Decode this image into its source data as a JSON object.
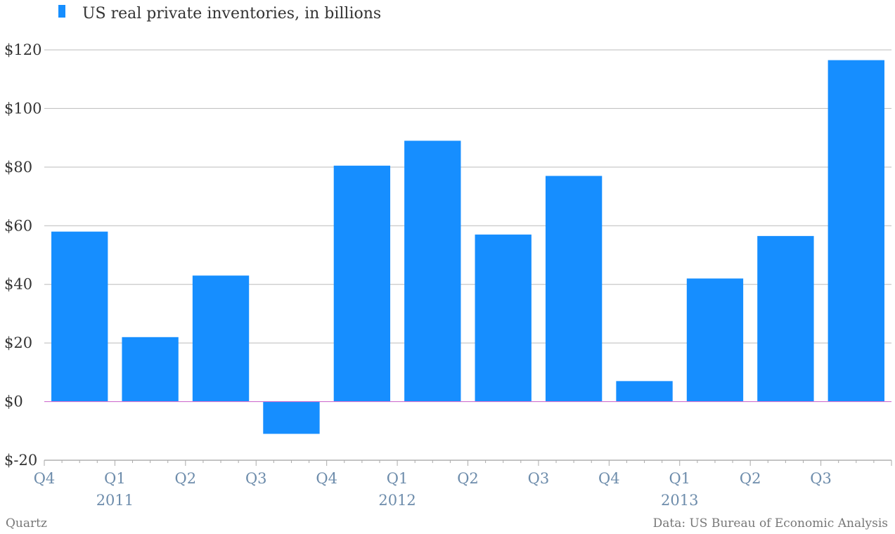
{
  "chart_data": {
    "type": "bar",
    "legend": {
      "label": "US real private inventories, in billions",
      "placement": "top-left"
    },
    "categories": [
      "Q4 2010",
      "Q1 2011",
      "Q2 2011",
      "Q3 2011",
      "Q4 2011",
      "Q1 2012",
      "Q2 2012",
      "Q3 2012",
      "Q4 2012",
      "Q1 2013",
      "Q2 2013",
      "Q3 2013"
    ],
    "values": [
      58,
      22,
      43,
      -11,
      80.5,
      89,
      57,
      77,
      7,
      42,
      56.5,
      116.5
    ],
    "ylim": [
      -20,
      120
    ],
    "yticks": [
      -20,
      0,
      20,
      40,
      60,
      80,
      100,
      120
    ],
    "ytick_labels": [
      "$-20",
      "$0",
      "$20",
      "$40",
      "$60",
      "$80",
      "$100",
      "$120"
    ],
    "xtick_labels": [
      "Q4",
      "Q1",
      "Q2",
      "Q3",
      "Q4",
      "Q1",
      "Q2",
      "Q3",
      "Q4",
      "Q1",
      "Q2",
      "Q3"
    ],
    "year_labels": [
      "2011",
      "2012",
      "2013"
    ],
    "grid": true,
    "colors": {
      "bar": "#168eff",
      "grid": "#bbbbbb",
      "zero_line": "#d070d0",
      "tick_text": "#6d8cab"
    }
  },
  "footer": {
    "source_left": "Quartz",
    "source_right": "Data: US Bureau of Economic Analysis"
  }
}
